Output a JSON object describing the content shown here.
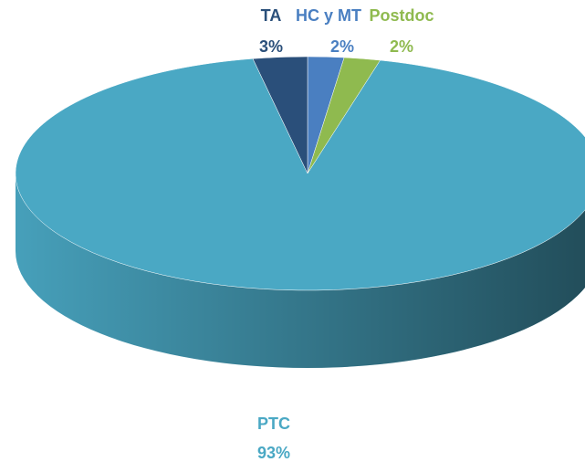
{
  "chart_data": {
    "type": "pie",
    "categories": [
      "HC y MT",
      "Postdoc",
      "PTC",
      "TA"
    ],
    "values": [
      2,
      2,
      93,
      3
    ],
    "value_labels": [
      "2%",
      "2%",
      "93%",
      "3%"
    ],
    "colors": [
      "#4a7fc1",
      "#8fba4f",
      "#4aa8c4",
      "#2a4f7a"
    ]
  }
}
